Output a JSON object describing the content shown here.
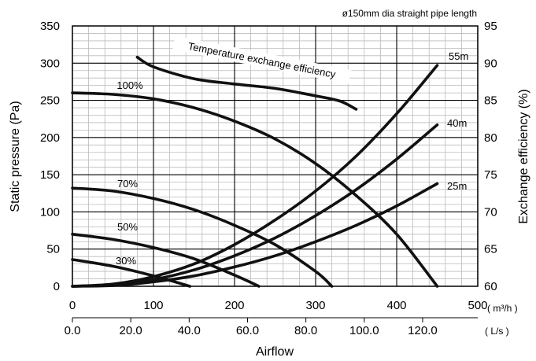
{
  "chart_data": {
    "type": "line",
    "title": "ø150mm dia straight pipe length",
    "xlabel": "Airflow",
    "x_primary_unit": "( m³/h )",
    "x_secondary_unit": "( L/s )",
    "ylabel": "Static pressure (Pa)",
    "y2label": "Exchange efficiency (%)",
    "xlim": [
      0,
      500
    ],
    "ylim": [
      0,
      350
    ],
    "y2lim": [
      60,
      95
    ],
    "grid": true,
    "x_ticks": [
      "0",
      "100",
      "200",
      "300",
      "400",
      "500"
    ],
    "x_ticks_values": [
      0,
      100,
      200,
      300,
      400,
      500
    ],
    "x2_ticks": [
      "0.0",
      "20.0",
      "40.0",
      "60.0",
      "80.0",
      "100.0",
      "120.0"
    ],
    "x2_ticks_values": [
      0,
      20,
      40,
      60,
      80,
      100,
      120
    ],
    "y_ticks": [
      "0",
      "50",
      "100",
      "150",
      "200",
      "250",
      "300",
      "350"
    ],
    "y_ticks_values": [
      0,
      50,
      100,
      150,
      200,
      250,
      300,
      350
    ],
    "y2_ticks": [
      "60",
      "65",
      "70",
      "75",
      "80",
      "85",
      "90",
      "95"
    ],
    "y2_ticks_values": [
      60,
      65,
      70,
      75,
      80,
      85,
      90,
      95
    ],
    "fan_curves": [
      {
        "name": "100%",
        "x": [
          0,
          50,
          100,
          150,
          200,
          250,
          300,
          350,
          400,
          450
        ],
        "y": [
          260,
          258,
          252,
          240,
          222,
          198,
          165,
          122,
          70,
          0
        ]
      },
      {
        "name": "70%",
        "x": [
          0,
          50,
          100,
          150,
          200,
          250,
          300,
          320
        ],
        "y": [
          132,
          128,
          118,
          103,
          82,
          56,
          20,
          0
        ]
      },
      {
        "name": "50%",
        "x": [
          0,
          50,
          100,
          150,
          200,
          230
        ],
        "y": [
          70,
          63,
          52,
          37,
          15,
          0
        ]
      },
      {
        "name": "30%",
        "x": [
          0,
          50,
          100,
          145
        ],
        "y": [
          36,
          27,
          14,
          0
        ]
      }
    ],
    "duct_curves": [
      {
        "name": "55m",
        "x": [
          0,
          50,
          100,
          150,
          200,
          250,
          300,
          350,
          400,
          450
        ],
        "y": [
          0,
          3,
          13,
          30,
          56,
          89,
          128,
          175,
          232,
          297
        ]
      },
      {
        "name": "40m",
        "x": [
          0,
          50,
          100,
          150,
          200,
          250,
          300,
          350,
          400,
          450
        ],
        "y": [
          0,
          2,
          9,
          22,
          41,
          65,
          95,
          130,
          171,
          217
        ]
      },
      {
        "name": "25m",
        "x": [
          0,
          50,
          100,
          150,
          200,
          250,
          300,
          350,
          400,
          450
        ],
        "y": [
          0,
          1,
          6,
          14,
          26,
          41,
          60,
          82,
          108,
          138
        ]
      }
    ],
    "efficiency_curve": {
      "name": "Temperature exchange efficiency",
      "x": [
        80,
        100,
        150,
        200,
        250,
        300,
        330,
        350
      ],
      "y": [
        90.8,
        89.5,
        87.9,
        87.2,
        86.6,
        85.6,
        84.9,
        83.8
      ]
    }
  }
}
